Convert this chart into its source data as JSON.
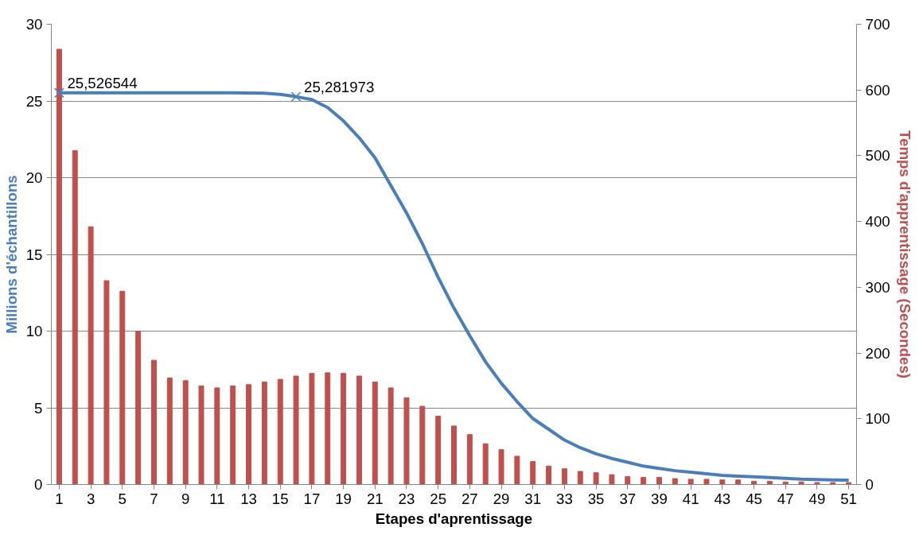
{
  "chart_data": {
    "type": "line",
    "xlabel": "Etapes d'aprentissage",
    "ylabel": "Millions d'échantillons",
    "y2label": "Temps d'apprentissage (Secondes)",
    "x": [
      1,
      2,
      3,
      4,
      5,
      6,
      7,
      8,
      9,
      10,
      11,
      12,
      13,
      14,
      15,
      16,
      17,
      18,
      19,
      20,
      21,
      22,
      23,
      24,
      25,
      26,
      27,
      28,
      29,
      30,
      31,
      32,
      33,
      34,
      35,
      36,
      37,
      38,
      39,
      40,
      41,
      42,
      43,
      44,
      45,
      46,
      47,
      48,
      49,
      50,
      51
    ],
    "xlim": [
      0.5,
      51.5
    ],
    "xticks": [
      1,
      3,
      5,
      7,
      9,
      11,
      13,
      15,
      17,
      19,
      21,
      23,
      25,
      27,
      29,
      31,
      33,
      35,
      37,
      39,
      41,
      43,
      45,
      47,
      49,
      51
    ],
    "ylim": [
      0,
      30
    ],
    "yticks": [
      0,
      5,
      10,
      15,
      20,
      25,
      30
    ],
    "y2lim": [
      0,
      700
    ],
    "y2ticks": [
      0,
      100,
      200,
      300,
      400,
      500,
      600,
      700
    ],
    "grid": "y",
    "series": [
      {
        "type": "bar",
        "axis": "y2",
        "color": "#c0504d",
        "values": [
          662,
          508,
          392,
          310,
          294,
          233,
          189,
          162,
          158,
          150,
          147,
          150,
          152,
          156,
          160,
          165,
          169,
          170,
          169,
          165,
          156,
          147,
          132,
          119,
          104,
          89,
          76,
          62,
          53,
          43,
          35,
          28,
          24,
          20,
          18,
          15,
          12,
          11,
          11,
          9,
          8,
          8,
          7,
          7,
          5,
          5,
          4,
          4,
          3,
          3,
          3
        ]
      },
      {
        "axis": "y",
        "color": "#4a7ebb",
        "values": [
          25.53,
          25.53,
          25.53,
          25.53,
          25.53,
          25.53,
          25.53,
          25.53,
          25.53,
          25.53,
          25.53,
          25.53,
          25.52,
          25.5,
          25.43,
          25.28,
          25.09,
          24.57,
          23.7,
          22.6,
          21.3,
          19.5,
          17.7,
          15.7,
          13.5,
          11.5,
          9.7,
          8.0,
          6.6,
          5.4,
          4.3,
          3.6,
          2.9,
          2.4,
          2.0,
          1.7,
          1.45,
          1.2,
          1.05,
          0.9,
          0.8,
          0.7,
          0.6,
          0.55,
          0.5,
          0.45,
          0.4,
          0.35,
          0.33,
          0.3,
          0.28
        ]
      },
      {
        "type": "scatter",
        "axis": "y",
        "color": "#4a7ebb",
        "marker": "cross",
        "x": [
          1,
          16
        ],
        "values": [
          25.53,
          25.28
        ],
        "value_labels": [
          "25,526544",
          "25,281973"
        ]
      }
    ]
  }
}
